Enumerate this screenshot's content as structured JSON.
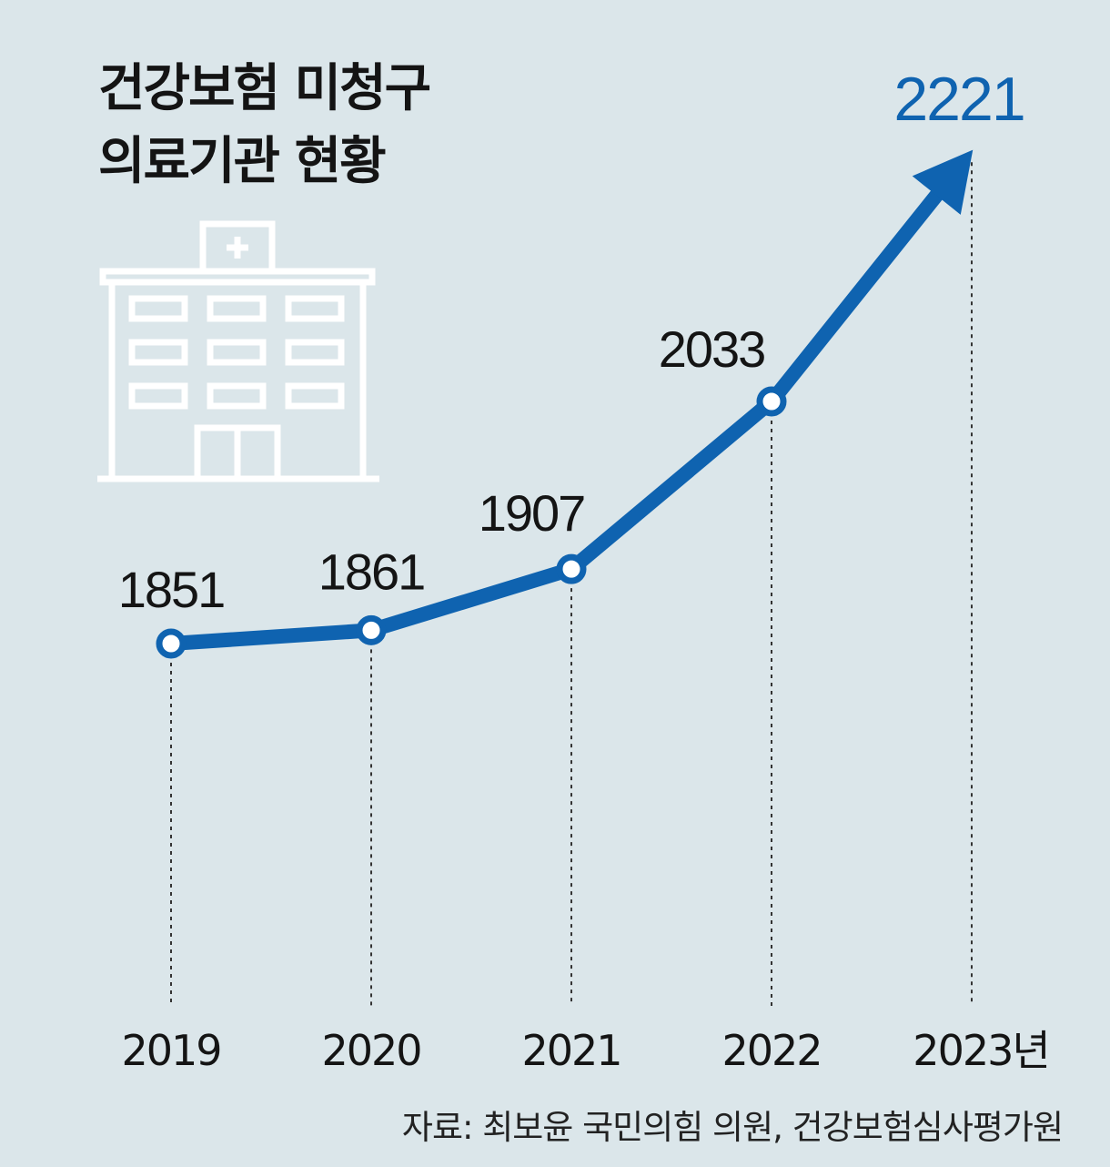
{
  "title": {
    "line1": "건강보험 미청구",
    "line2": "의료기관 현황"
  },
  "icons": {
    "building": "hospital-building-icon"
  },
  "colors": {
    "background": "#dbe6ea",
    "line": "#0f63b0",
    "text": "#141414",
    "last_value": "#0f63b0"
  },
  "chart_data": {
    "type": "line",
    "categories": [
      "2019",
      "2020",
      "2021",
      "2022",
      "2023년"
    ],
    "values": [
      1851,
      1861,
      1907,
      2033,
      2221
    ],
    "data_labels": [
      "1851",
      "1861",
      "1907",
      "2033",
      "2221"
    ],
    "last_point_style": "arrow"
  },
  "source": "자료: 최보윤 국민의힘 의원, 건강보험심사평가원"
}
